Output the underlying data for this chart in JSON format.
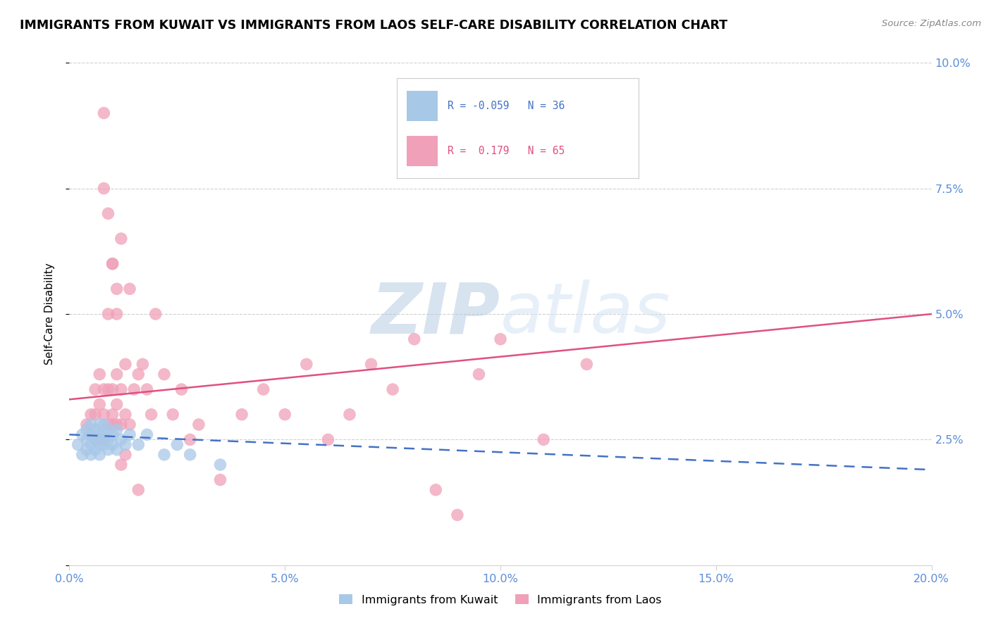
{
  "title": "IMMIGRANTS FROM KUWAIT VS IMMIGRANTS FROM LAOS SELF-CARE DISABILITY CORRELATION CHART",
  "source": "Source: ZipAtlas.com",
  "ylabel": "Self-Care Disability",
  "xlim": [
    0.0,
    0.2
  ],
  "ylim": [
    0.0,
    0.1
  ],
  "xticks": [
    0.0,
    0.05,
    0.1,
    0.15,
    0.2
  ],
  "xticklabels": [
    "0.0%",
    "5.0%",
    "10.0%",
    "15.0%",
    "20.0%"
  ],
  "yticks_right": [
    0.0,
    0.025,
    0.05,
    0.075,
    0.1
  ],
  "yticklabels_right": [
    "",
    "2.5%",
    "5.0%",
    "7.5%",
    "10.0%"
  ],
  "kuwait_color": "#a8c8e8",
  "laos_color": "#f0a0b8",
  "kuwait_line_color": "#4472c4",
  "laos_line_color": "#e05080",
  "kuwait_R": -0.059,
  "kuwait_N": 36,
  "laos_R": 0.179,
  "laos_N": 65,
  "watermark_zip": "ZIP",
  "watermark_atlas": "atlas",
  "background_color": "#ffffff",
  "grid_color": "#d0d0d0",
  "kuwait_x": [
    0.002,
    0.003,
    0.003,
    0.004,
    0.004,
    0.004,
    0.005,
    0.005,
    0.005,
    0.005,
    0.006,
    0.006,
    0.006,
    0.007,
    0.007,
    0.007,
    0.007,
    0.008,
    0.008,
    0.008,
    0.009,
    0.009,
    0.009,
    0.01,
    0.01,
    0.011,
    0.011,
    0.012,
    0.013,
    0.014,
    0.016,
    0.018,
    0.022,
    0.025,
    0.028,
    0.035
  ],
  "kuwait_y": [
    0.024,
    0.022,
    0.026,
    0.023,
    0.025,
    0.027,
    0.022,
    0.024,
    0.026,
    0.028,
    0.023,
    0.025,
    0.027,
    0.022,
    0.024,
    0.026,
    0.028,
    0.024,
    0.026,
    0.028,
    0.023,
    0.025,
    0.027,
    0.024,
    0.026,
    0.023,
    0.027,
    0.025,
    0.024,
    0.026,
    0.024,
    0.026,
    0.022,
    0.024,
    0.022,
    0.02
  ],
  "laos_x": [
    0.004,
    0.005,
    0.005,
    0.006,
    0.006,
    0.006,
    0.007,
    0.007,
    0.007,
    0.008,
    0.008,
    0.008,
    0.008,
    0.009,
    0.009,
    0.009,
    0.01,
    0.01,
    0.01,
    0.01,
    0.011,
    0.011,
    0.011,
    0.011,
    0.012,
    0.012,
    0.012,
    0.013,
    0.013,
    0.014,
    0.014,
    0.015,
    0.016,
    0.017,
    0.018,
    0.019,
    0.02,
    0.022,
    0.024,
    0.026,
    0.028,
    0.03,
    0.035,
    0.04,
    0.045,
    0.05,
    0.055,
    0.06,
    0.065,
    0.07,
    0.075,
    0.08,
    0.085,
    0.09,
    0.095,
    0.1,
    0.11,
    0.12,
    0.013,
    0.016,
    0.008,
    0.009,
    0.01,
    0.011,
    0.012
  ],
  "laos_y": [
    0.028,
    0.03,
    0.026,
    0.025,
    0.03,
    0.035,
    0.025,
    0.032,
    0.038,
    0.03,
    0.025,
    0.035,
    0.09,
    0.028,
    0.035,
    0.05,
    0.03,
    0.028,
    0.035,
    0.06,
    0.028,
    0.032,
    0.038,
    0.05,
    0.028,
    0.035,
    0.065,
    0.03,
    0.04,
    0.028,
    0.055,
    0.035,
    0.038,
    0.04,
    0.035,
    0.03,
    0.05,
    0.038,
    0.03,
    0.035,
    0.025,
    0.028,
    0.017,
    0.03,
    0.035,
    0.03,
    0.04,
    0.025,
    0.03,
    0.04,
    0.035,
    0.045,
    0.015,
    0.01,
    0.038,
    0.045,
    0.025,
    0.04,
    0.022,
    0.015,
    0.075,
    0.07,
    0.06,
    0.055,
    0.02
  ]
}
